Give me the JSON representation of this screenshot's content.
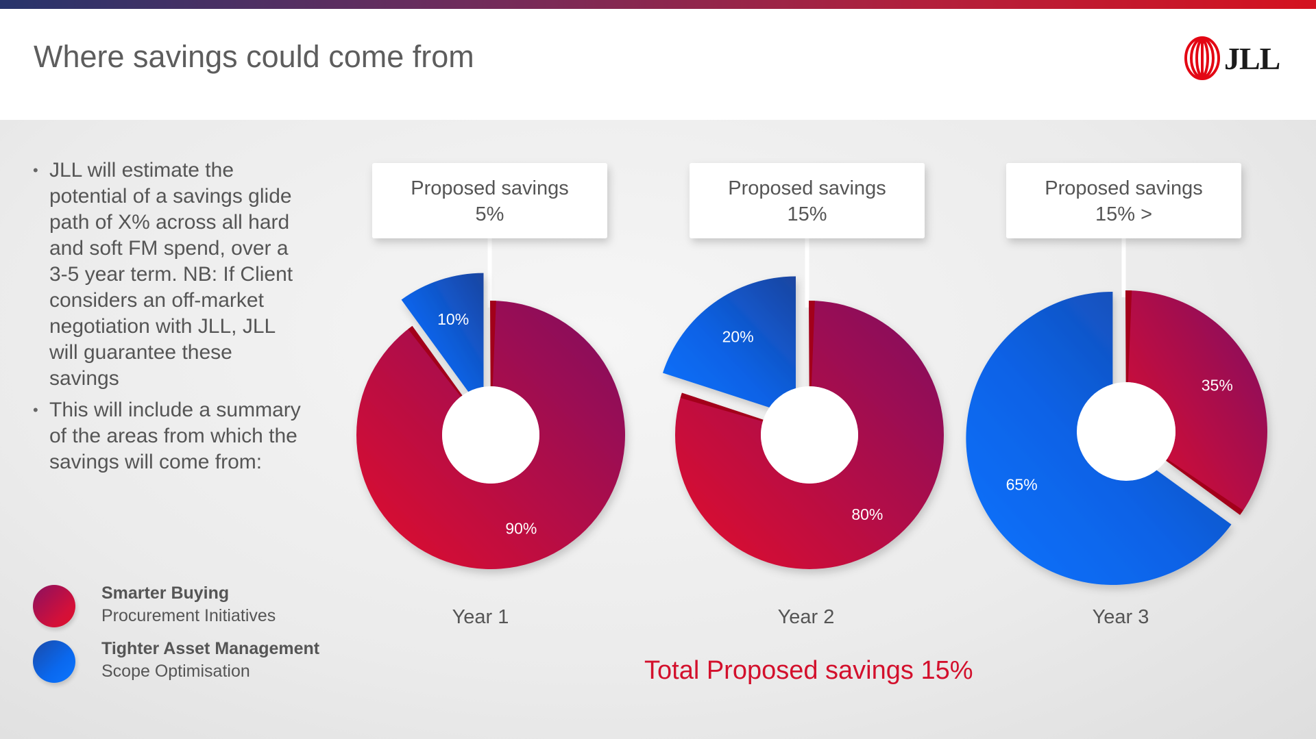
{
  "slide": {
    "title": "Where savings could come from"
  },
  "logo": {
    "text": "JLL"
  },
  "bullets": [
    "JLL will estimate the potential of a savings glide path of X% across all hard and soft FM spend, over a 3-5 year term. NB: If Client considers an off-market negotiation with JLL, JLL will guarantee these savings",
    "This will include a summary of the areas from which the savings will come from:"
  ],
  "legend": [
    {
      "title": "Smarter Buying",
      "subtitle": "Procurement Initiatives"
    },
    {
      "title": "Tighter Asset Management",
      "subtitle": "Scope Optimisation"
    }
  ],
  "chart_data": [
    {
      "type": "pie",
      "variant": "donut, exploded",
      "callout": [
        "Proposed savings",
        "5%"
      ],
      "category_label": "Year 1",
      "slices": [
        {
          "label": "90%",
          "value": 90,
          "legend": "Smarter Buying"
        },
        {
          "label": "10%",
          "value": 10,
          "legend": "Tighter Asset Management"
        }
      ]
    },
    {
      "type": "pie",
      "variant": "donut, exploded",
      "callout": [
        "Proposed savings",
        "15%"
      ],
      "category_label": "Year 2",
      "slices": [
        {
          "label": "80%",
          "value": 80,
          "legend": "Smarter Buying"
        },
        {
          "label": "20%",
          "value": 20,
          "legend": "Tighter Asset Management"
        }
      ]
    },
    {
      "type": "pie",
      "variant": "donut, exploded",
      "callout": [
        "Proposed savings",
        "15% >"
      ],
      "category_label": "Year 3",
      "slices": [
        {
          "label": "35%",
          "value": 35,
          "legend": "Smarter Buying"
        },
        {
          "label": "65%",
          "value": 65,
          "legend": "Tighter Asset Management"
        }
      ]
    }
  ],
  "total": "Total Proposed savings 15%",
  "colors": {
    "primary_dark": "#8a1160",
    "primary_light": "#dc1030",
    "secondary_dark": "#1c4ea6",
    "secondary_light": "#0b6ef5",
    "accent_text": "#d3102c"
  }
}
